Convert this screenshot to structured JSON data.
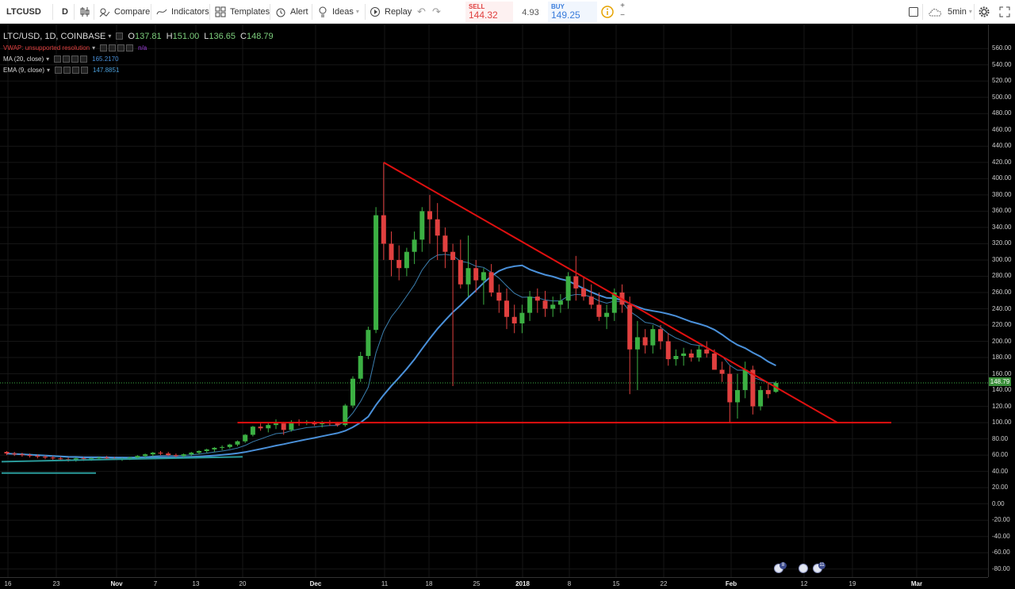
{
  "toolbar": {
    "symbol": "LTCUSD",
    "interval": "D",
    "compare": "Compare",
    "indicators": "Indicators",
    "templates": "Templates",
    "alert": "Alert",
    "ideas": "Ideas",
    "replay": "Replay",
    "timeframe": "5min"
  },
  "trade": {
    "sell_label": "SELL",
    "sell_value": "144.32",
    "spread": "4.93",
    "buy_label": "BUY",
    "buy_value": "149.25",
    "plus": "+",
    "minus": "−"
  },
  "legend": {
    "title": "LTC/USD, 1D, COINBASE",
    "o_label": "O",
    "o_value": "137.81",
    "h_label": "H",
    "h_value": "151.00",
    "l_label": "L",
    "l_value": "136.65",
    "c_label": "C",
    "c_value": "148.79",
    "vwap_label": "VWAP: unsupported resolution",
    "vwap_value": "n/a",
    "ma_label": "MA (20, close)",
    "ma_value": "165.2170",
    "ema_label": "EMA (9, close)",
    "ema_value": "147.8851"
  },
  "colors": {
    "up": "#3cb043",
    "down": "#e0403f",
    "ma": "#4a90d9",
    "ema": "#4a9ed9",
    "trendline": "#e01010",
    "vwap": "#e0403f",
    "pricetag": "#3a8f3a"
  },
  "last_price_label": "148.79",
  "price_ticks": [
    "560.00",
    "540.00",
    "520.00",
    "500.00",
    "480.00",
    "460.00",
    "440.00",
    "420.00",
    "400.00",
    "380.00",
    "360.00",
    "340.00",
    "320.00",
    "300.00",
    "280.00",
    "260.00",
    "240.00",
    "220.00",
    "200.00",
    "180.00",
    "160.00",
    "140.00",
    "120.00",
    "100.00",
    "80.00",
    "60.00",
    "40.00",
    "20.00",
    "0.00",
    "-20.00",
    "-40.00",
    "-60.00",
    "-80.00"
  ],
  "time_ticks": [
    "16",
    "23",
    "Nov",
    "7",
    "13",
    "20",
    "Dec",
    "11",
    "18",
    "25",
    "2018",
    "8",
    "15",
    "22",
    "Feb",
    "12",
    "19",
    "Mar"
  ],
  "event_badges": [
    "8",
    "11"
  ],
  "chart_data": {
    "type": "candlestick",
    "title": "LTC/USD, 1D, COINBASE",
    "ylim": [
      -90,
      570
    ],
    "grid": true,
    "candles_ohlc": [
      [
        64,
        65,
        60,
        62
      ],
      [
        62,
        64,
        59,
        61
      ],
      [
        61,
        63,
        58,
        60
      ],
      [
        60,
        62,
        57,
        59
      ],
      [
        59,
        61,
        56,
        58
      ],
      [
        58,
        60,
        55,
        57
      ],
      [
        57,
        59,
        54,
        56
      ],
      [
        56,
        58,
        53,
        55
      ],
      [
        55,
        57,
        52,
        54
      ],
      [
        54,
        57,
        52,
        56
      ],
      [
        56,
        58,
        53,
        55
      ],
      [
        55,
        57,
        53,
        56
      ],
      [
        56,
        58,
        54,
        57
      ],
      [
        57,
        59,
        55,
        56
      ],
      [
        56,
        58,
        54,
        55
      ],
      [
        55,
        57,
        53,
        56
      ],
      [
        56,
        58,
        54,
        57
      ],
      [
        57,
        60,
        55,
        59
      ],
      [
        59,
        62,
        57,
        61
      ],
      [
        61,
        64,
        58,
        63
      ],
      [
        63,
        65,
        60,
        62
      ],
      [
        62,
        64,
        59,
        60
      ],
      [
        60,
        62,
        57,
        59
      ],
      [
        59,
        62,
        57,
        61
      ],
      [
        61,
        64,
        59,
        63
      ],
      [
        63,
        66,
        61,
        65
      ],
      [
        65,
        68,
        63,
        67
      ],
      [
        67,
        70,
        64,
        69
      ],
      [
        69,
        72,
        66,
        70
      ],
      [
        70,
        74,
        68,
        73
      ],
      [
        73,
        78,
        71,
        77
      ],
      [
        77,
        86,
        75,
        85
      ],
      [
        85,
        96,
        83,
        95
      ],
      [
        95,
        99,
        90,
        93
      ],
      [
        93,
        100,
        88,
        97
      ],
      [
        97,
        104,
        92,
        99
      ],
      [
        99,
        101,
        85,
        91
      ],
      [
        91,
        103,
        89,
        101
      ],
      [
        101,
        104,
        96,
        100
      ],
      [
        100,
        103,
        97,
        101
      ],
      [
        101,
        102,
        96,
        98
      ],
      [
        98,
        102,
        94,
        100
      ],
      [
        100,
        103,
        96,
        99
      ],
      [
        99,
        101,
        95,
        97
      ],
      [
        97,
        123,
        95,
        121
      ],
      [
        121,
        157,
        118,
        154
      ],
      [
        154,
        187,
        150,
        182
      ],
      [
        182,
        218,
        178,
        214
      ],
      [
        214,
        365,
        210,
        355
      ],
      [
        355,
        420,
        300,
        320
      ],
      [
        320,
        335,
        280,
        300
      ],
      [
        300,
        318,
        275,
        290
      ],
      [
        290,
        315,
        280,
        310
      ],
      [
        310,
        335,
        295,
        325
      ],
      [
        325,
        365,
        310,
        360
      ],
      [
        360,
        380,
        320,
        350
      ],
      [
        350,
        370,
        300,
        330
      ],
      [
        330,
        340,
        290,
        310
      ],
      [
        310,
        320,
        145,
        300
      ],
      [
        300,
        325,
        265,
        270
      ],
      [
        270,
        330,
        255,
        290
      ],
      [
        290,
        300,
        260,
        275
      ],
      [
        275,
        290,
        245,
        285
      ],
      [
        285,
        295,
        255,
        260
      ],
      [
        260,
        270,
        235,
        250
      ],
      [
        250,
        265,
        215,
        230
      ],
      [
        230,
        245,
        210,
        222
      ],
      [
        222,
        245,
        210,
        235
      ],
      [
        235,
        262,
        225,
        255
      ],
      [
        255,
        265,
        235,
        250
      ],
      [
        250,
        262,
        230,
        240
      ],
      [
        240,
        255,
        230,
        245
      ],
      [
        245,
        258,
        235,
        250
      ],
      [
        250,
        285,
        240,
        280
      ],
      [
        280,
        305,
        250,
        265
      ],
      [
        265,
        280,
        250,
        255
      ],
      [
        255,
        270,
        240,
        245
      ],
      [
        245,
        260,
        225,
        230
      ],
      [
        230,
        245,
        215,
        235
      ],
      [
        235,
        265,
        225,
        260
      ],
      [
        260,
        270,
        235,
        245
      ],
      [
        245,
        255,
        135,
        190
      ],
      [
        190,
        225,
        140,
        205
      ],
      [
        205,
        215,
        185,
        195
      ],
      [
        195,
        220,
        185,
        215
      ],
      [
        215,
        220,
        190,
        200
      ],
      [
        200,
        210,
        170,
        178
      ],
      [
        178,
        190,
        170,
        182
      ],
      [
        182,
        192,
        170,
        185
      ],
      [
        185,
        190,
        175,
        180
      ],
      [
        180,
        195,
        175,
        190
      ],
      [
        190,
        200,
        180,
        185
      ],
      [
        185,
        190,
        170,
        165
      ],
      [
        165,
        175,
        150,
        160
      ],
      [
        160,
        170,
        100,
        125
      ],
      [
        125,
        160,
        105,
        140
      ],
      [
        140,
        175,
        130,
        165
      ],
      [
        165,
        170,
        110,
        120
      ],
      [
        120,
        145,
        115,
        140
      ],
      [
        140,
        148,
        130,
        135
      ],
      [
        137.81,
        151,
        136.65,
        148.79
      ]
    ],
    "series": [
      {
        "name": "MA (20, close)",
        "last": 165.217
      },
      {
        "name": "EMA (9, close)",
        "last": 147.8851
      }
    ],
    "drawings": [
      {
        "type": "trendline",
        "points": [
          [
            49,
            420
          ],
          [
            108,
            100
          ]
        ]
      },
      {
        "type": "horizontal",
        "y": 100,
        "from": 30,
        "to": 115
      }
    ]
  }
}
